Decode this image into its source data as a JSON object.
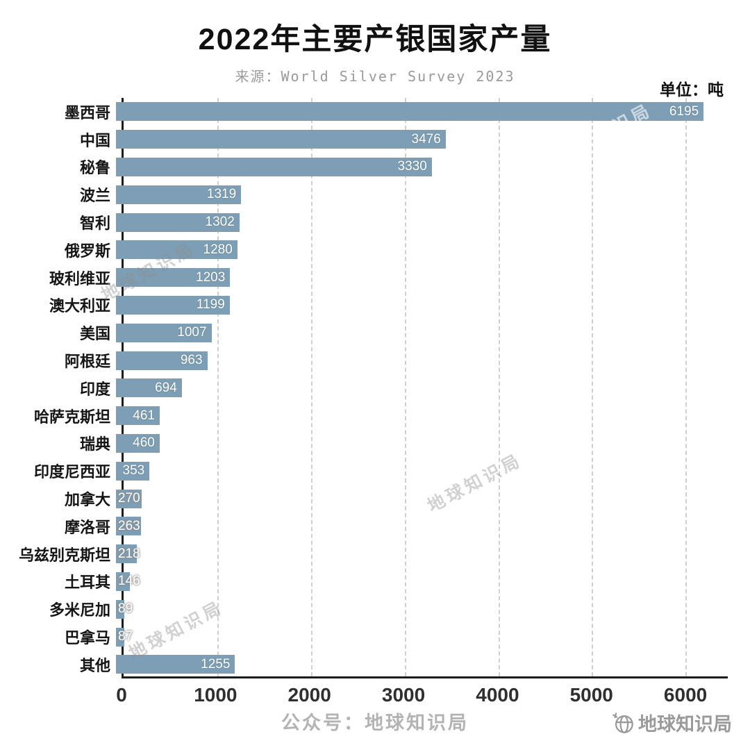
{
  "header": {
    "title": "2022年主要产银国家产量",
    "subtitle": "来源：World Silver Survey 2023",
    "unit_label": "单位：吨"
  },
  "chart_data": {
    "type": "bar",
    "orientation": "horizontal",
    "title": "2022年主要产银国家产量",
    "source": "World Silver Survey 2023",
    "unit": "吨",
    "categories": [
      "墨西哥",
      "中国",
      "秘鲁",
      "波兰",
      "智利",
      "俄罗斯",
      "玻利维亚",
      "澳大利亚",
      "美国",
      "阿根廷",
      "印度",
      "哈萨克斯坦",
      "瑞典",
      "印度尼西亚",
      "加拿大",
      "摩洛哥",
      "乌兹别克斯坦",
      "土耳其",
      "多米尼加",
      "巴拿马",
      "其他"
    ],
    "values": [
      6195,
      3476,
      3330,
      1319,
      1302,
      1280,
      1203,
      1199,
      1007,
      963,
      694,
      461,
      460,
      353,
      270,
      263,
      218,
      146,
      89,
      87,
      1255
    ],
    "xlim": [
      0,
      6450
    ],
    "xticks": [
      0,
      1000,
      2000,
      3000,
      4000,
      5000,
      6000
    ],
    "bar_color": "#7d9eb5",
    "grid": "dashed-vertical",
    "inside_label_min_value": 300
  },
  "watermark": {
    "text": "地球知识局"
  },
  "footer": {
    "text": "公众号：地球知识局"
  },
  "logo": {
    "text": "地球知识局",
    "icon": "globe-icon"
  }
}
